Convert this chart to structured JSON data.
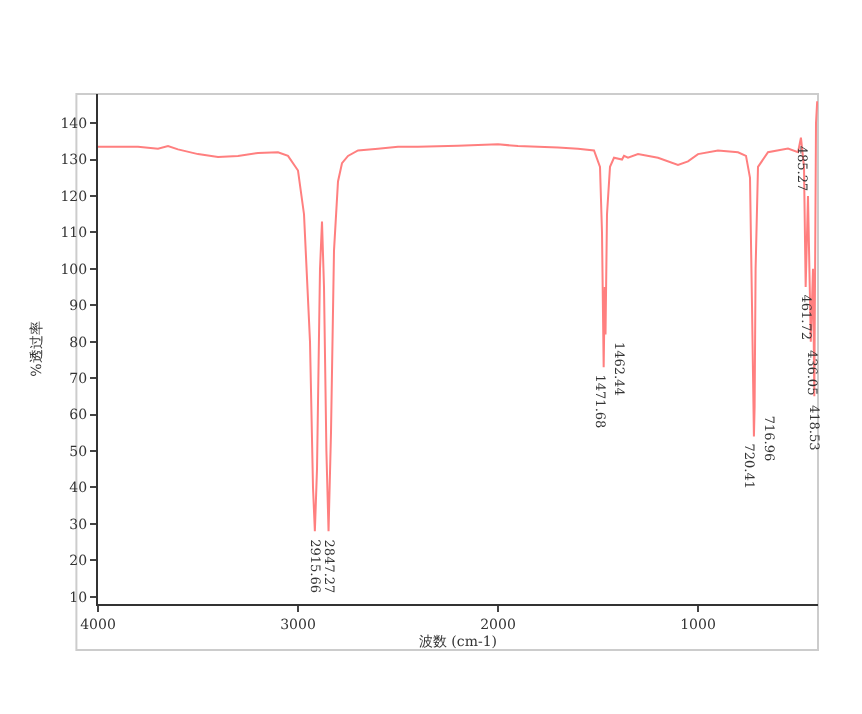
{
  "chart_data": {
    "type": "line",
    "xlabel": "波数 (cm-1)",
    "ylabel": "%透过率",
    "xlim": [
      4000,
      400
    ],
    "xticks": [
      4000,
      3000,
      2000,
      1000
    ],
    "ylim": [
      8,
      148
    ],
    "yticks": [
      10,
      20,
      30,
      40,
      50,
      60,
      70,
      80,
      90,
      100,
      110,
      120,
      130,
      140
    ],
    "grid": false,
    "marker": "none",
    "line_style": "solid",
    "series": [
      {
        "color": "#ff7f7f",
        "x": [
          4000,
          3800,
          3700,
          3650,
          3600,
          3500,
          3400,
          3300,
          3200,
          3100,
          3050,
          3000,
          2970,
          2940,
          2925,
          2915.66,
          2905,
          2890,
          2880,
          2870,
          2858,
          2847.27,
          2835,
          2820,
          2800,
          2780,
          2750,
          2700,
          2600,
          2500,
          2400,
          2200,
          2000,
          1900,
          1800,
          1700,
          1600,
          1520,
          1490,
          1480,
          1471.68,
          1466,
          1462.44,
          1455,
          1440,
          1420,
          1380,
          1370,
          1350,
          1300,
          1200,
          1100,
          1050,
          1000,
          900,
          800,
          760,
          740,
          730,
          720.41,
          716.96,
          712,
          700,
          650,
          550,
          500,
          485.27,
          470,
          461.72,
          450,
          436.05,
          425,
          418.53,
          410,
          404
        ],
        "values": [
          133.5,
          133.5,
          133,
          133.7,
          132.8,
          131.5,
          130.7,
          131,
          131.8,
          132,
          131,
          127,
          115,
          80,
          40,
          28,
          45,
          100,
          113,
          95,
          50,
          28,
          55,
          105,
          124,
          129,
          131,
          132.5,
          133,
          133.5,
          133.5,
          133.8,
          134.2,
          133.7,
          133.5,
          133.3,
          133,
          132.5,
          128,
          110,
          73,
          95,
          82,
          115,
          128,
          130.5,
          130,
          131,
          130.5,
          131.5,
          130.5,
          128.5,
          129.5,
          131.5,
          132.5,
          132,
          131,
          125,
          90,
          54,
          62,
          100,
          128,
          132,
          133,
          132,
          136,
          128,
          95,
          120,
          80,
          100,
          65,
          140,
          146
        ]
      }
    ],
    "annotations": [
      {
        "text": "2915.66",
        "x": 2915.66,
        "y": 28
      },
      {
        "text": "2847.27",
        "x": 2847.27,
        "y": 28
      },
      {
        "text": "1471.68",
        "x": 1471.68,
        "y": 73
      },
      {
        "text": "1462.44",
        "x": 1462.44,
        "y": 82
      },
      {
        "text": "720.41",
        "x": 720.41,
        "y": 54
      },
      {
        "text": "716.96",
        "x": 716.96,
        "y": 62
      },
      {
        "text": "485.27",
        "x": 485.27,
        "y": 136
      },
      {
        "text": "461.72",
        "x": 461.72,
        "y": 95
      },
      {
        "text": "436.05",
        "x": 436.05,
        "y": 80
      },
      {
        "text": "418.53",
        "x": 418.53,
        "y": 65
      }
    ]
  }
}
